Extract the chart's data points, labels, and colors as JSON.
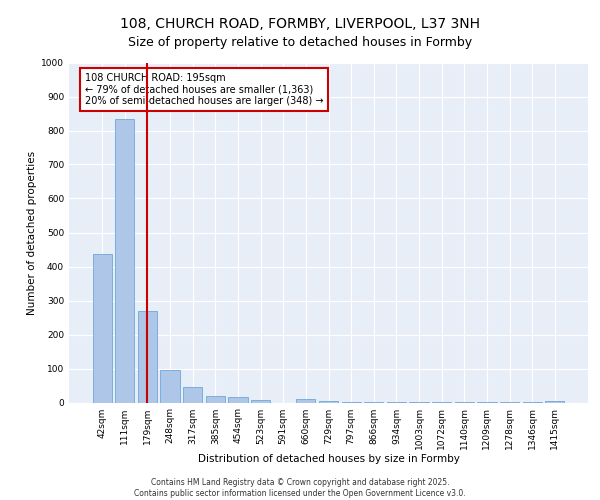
{
  "title_line1": "108, CHURCH ROAD, FORMBY, LIVERPOOL, L37 3NH",
  "title_line2": "Size of property relative to detached houses in Formby",
  "xlabel": "Distribution of detached houses by size in Formby",
  "ylabel": "Number of detached properties",
  "categories": [
    "42sqm",
    "111sqm",
    "179sqm",
    "248sqm",
    "317sqm",
    "385sqm",
    "454sqm",
    "523sqm",
    "591sqm",
    "660sqm",
    "729sqm",
    "797sqm",
    "866sqm",
    "934sqm",
    "1003sqm",
    "1072sqm",
    "1140sqm",
    "1209sqm",
    "1278sqm",
    "1346sqm",
    "1415sqm"
  ],
  "values": [
    437,
    835,
    270,
    95,
    45,
    20,
    15,
    8,
    0,
    10,
    5,
    2,
    1,
    1,
    1,
    1,
    1,
    1,
    1,
    1,
    5
  ],
  "bar_color": "#aec6e8",
  "bar_edge_color": "#5a9fd4",
  "vline_x": 2.0,
  "vline_color": "#cc0000",
  "annotation_text": "108 CHURCH ROAD: 195sqm\n← 79% of detached houses are smaller (1,363)\n20% of semi-detached houses are larger (348) →",
  "annotation_box_color": "#cc0000",
  "ylim": [
    0,
    1000
  ],
  "yticks": [
    0,
    100,
    200,
    300,
    400,
    500,
    600,
    700,
    800,
    900,
    1000
  ],
  "background_color": "#e8eef8",
  "footer_text": "Contains HM Land Registry data © Crown copyright and database right 2025.\nContains public sector information licensed under the Open Government Licence v3.0.",
  "title_fontsize": 10,
  "subtitle_fontsize": 9,
  "axis_label_fontsize": 7.5,
  "tick_fontsize": 6.5,
  "annotation_fontsize": 7,
  "footer_fontsize": 5.5
}
